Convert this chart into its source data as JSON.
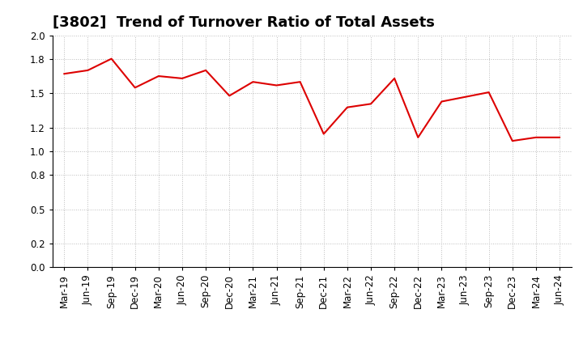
{
  "title": "[3802]  Trend of Turnover Ratio of Total Assets",
  "x_labels": [
    "Mar-19",
    "Jun-19",
    "Sep-19",
    "Dec-19",
    "Mar-20",
    "Jun-20",
    "Sep-20",
    "Dec-20",
    "Mar-21",
    "Jun-21",
    "Sep-21",
    "Dec-21",
    "Mar-22",
    "Jun-22",
    "Sep-22",
    "Dec-22",
    "Mar-23",
    "Jun-23",
    "Sep-23",
    "Dec-23",
    "Mar-24",
    "Jun-24"
  ],
  "values": [
    1.67,
    1.7,
    1.8,
    1.55,
    1.65,
    1.63,
    1.7,
    1.48,
    1.6,
    1.57,
    1.6,
    1.15,
    1.38,
    1.41,
    1.63,
    1.12,
    1.43,
    1.47,
    1.51,
    1.09,
    1.12,
    1.12
  ],
  "line_color": "#dd0000",
  "background_color": "#ffffff",
  "plot_bg_color": "#ffffff",
  "ylim": [
    0.0,
    2.0
  ],
  "yticks": [
    0.0,
    0.2,
    0.5,
    0.8,
    1.0,
    1.2,
    1.5,
    1.8,
    2.0
  ],
  "grid_color": "#bbbbbb",
  "title_fontsize": 13,
  "tick_fontsize": 8.5
}
